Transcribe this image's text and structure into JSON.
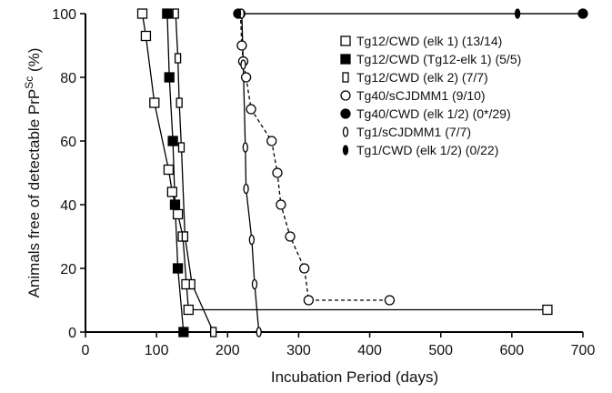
{
  "chart_data": {
    "type": "line",
    "xlabel": "Incubation Period (days)",
    "ylabel_main": "Animals free of detectable PrP",
    "ylabel_sup": "Sc",
    "ylabel_tail": " (%)",
    "xlim": [
      0,
      700
    ],
    "ylim": [
      0,
      100
    ],
    "x_ticks": [
      "0",
      "100",
      "200",
      "300",
      "400",
      "500",
      "600",
      "700"
    ],
    "y_ticks": [
      "0",
      "20",
      "40",
      "60",
      "80",
      "100"
    ],
    "grid": false,
    "legend_position": "top-right",
    "series": [
      {
        "name": "Tg12/CWD (elk 1) (13/14)",
        "marker": "open-square",
        "line": "solid",
        "points": [
          [
            80,
            100
          ],
          [
            85,
            93
          ],
          [
            97,
            72
          ],
          [
            117,
            51
          ],
          [
            122,
            44
          ],
          [
            130,
            37
          ],
          [
            137,
            30
          ],
          [
            142,
            15
          ],
          [
            145,
            7
          ],
          [
            650,
            7
          ]
        ]
      },
      {
        "name": "Tg12/CWD (Tg12-elk 1) (5/5)",
        "marker": "filled-square",
        "line": "solid",
        "points": [
          [
            115,
            100
          ],
          [
            118,
            80
          ],
          [
            123,
            60
          ],
          [
            126,
            40
          ],
          [
            130,
            20
          ],
          [
            138,
            0
          ]
        ]
      },
      {
        "name": "Tg12/CWD (elk 2) (7/7)",
        "marker": "open-rect",
        "line": "solid",
        "points": [
          [
            127,
            100
          ],
          [
            130,
            86
          ],
          [
            132,
            72
          ],
          [
            135,
            58
          ],
          [
            140,
            30
          ],
          [
            150,
            15
          ],
          [
            180,
            0
          ]
        ]
      },
      {
        "name": "Tg40/sCJDMM1 (9/10)",
        "marker": "open-circle",
        "line": "dashed",
        "points": [
          [
            218,
            100
          ],
          [
            220,
            90
          ],
          [
            222,
            85
          ],
          [
            226,
            80
          ],
          [
            233,
            70
          ],
          [
            262,
            60
          ],
          [
            270,
            50
          ],
          [
            275,
            40
          ],
          [
            288,
            30
          ],
          [
            308,
            20
          ],
          [
            314,
            10
          ],
          [
            428,
            10
          ]
        ]
      },
      {
        "name": "Tg40/CWD (elk 1/2) (0*/29)",
        "marker": "filled-circle",
        "line": "solid",
        "points": [
          [
            215,
            100
          ],
          [
            700,
            100
          ]
        ]
      },
      {
        "name": "Tg1/sCJDMM1 (7/7)",
        "marker": "open-ellipse",
        "line": "solid",
        "points": [
          [
            220,
            100
          ],
          [
            222,
            84
          ],
          [
            225,
            58
          ],
          [
            226,
            45
          ],
          [
            234,
            29
          ],
          [
            238,
            15
          ],
          [
            244,
            0
          ]
        ]
      },
      {
        "name": "Tg1/CWD (elk 1/2) (0/22)",
        "marker": "filled-ellipse",
        "line": "solid",
        "points": [
          [
            215,
            100
          ],
          [
            608,
            100
          ],
          [
            700,
            100
          ]
        ]
      }
    ]
  }
}
